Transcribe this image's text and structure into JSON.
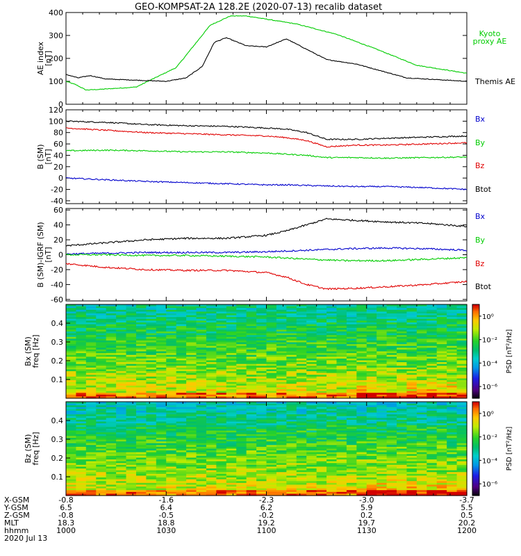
{
  "title": "GEO-KOMPSAT-2A 128.2E (2020-07-13) recalib dataset",
  "colors": {
    "black": "#000000",
    "red": "#e00000",
    "green": "#00cc00",
    "blue": "#0000cc"
  },
  "chart_data": [
    {
      "type": "line",
      "panel": "AE index",
      "ylabel": [
        "AE index",
        "[nT]"
      ],
      "ylim": [
        0,
        400
      ],
      "yticks": [
        "0",
        "100",
        "200",
        "300",
        "400"
      ],
      "x": [
        10.0,
        10.25,
        10.5,
        10.75,
        11.0,
        11.25,
        11.5,
        11.75,
        12.0
      ],
      "series": [
        {
          "name": "Kyoto\nproxy AE",
          "legend": [
            "Kyoto",
            "proxy AE"
          ],
          "color": "#00cc00",
          "values": [
            100,
            85,
            62,
            65,
            75,
            160,
            345,
            385,
            385,
            350,
            305,
            240,
            170,
            135
          ],
          "x": [
            10.0,
            10.05,
            10.1,
            10.17,
            10.35,
            10.55,
            10.72,
            10.82,
            10.9,
            11.15,
            11.35,
            11.55,
            11.75,
            12.0
          ]
        },
        {
          "name": "Themis AE",
          "legend": [
            "Themis AE"
          ],
          "color": "#000000",
          "values": [
            130,
            115,
            125,
            110,
            105,
            100,
            115,
            165,
            270,
            290,
            255,
            250,
            285,
            195,
            175,
            115,
            100
          ],
          "x": [
            10.0,
            10.06,
            10.12,
            10.2,
            10.35,
            10.5,
            10.6,
            10.68,
            10.74,
            10.8,
            10.9,
            11.0,
            11.1,
            11.3,
            11.45,
            11.7,
            12.0
          ]
        }
      ]
    },
    {
      "type": "line",
      "panel": "B (SM)",
      "ylabel": [
        "B (SM)",
        "[nT]"
      ],
      "ylim": [
        -45,
        120
      ],
      "yticks": [
        "-40",
        "-20",
        "0",
        "20",
        "40",
        "60",
        "80",
        "100",
        "120"
      ],
      "series": [
        {
          "name": "Btot",
          "color": "#000000",
          "x": [
            10.0,
            10.2,
            10.4,
            10.6,
            10.8,
            11.0,
            11.1,
            11.2,
            11.3,
            11.45,
            11.6,
            11.8,
            12.0
          ],
          "values": [
            100,
            98,
            94,
            92,
            91,
            88,
            86,
            80,
            68,
            68,
            70,
            72,
            74
          ]
        },
        {
          "name": "Bz",
          "color": "#e00000",
          "x": [
            10.0,
            10.2,
            10.4,
            10.6,
            10.8,
            11.0,
            11.1,
            11.2,
            11.3,
            11.45,
            11.6,
            11.8,
            12.0
          ],
          "values": [
            88,
            84,
            80,
            78,
            76,
            74,
            71,
            66,
            55,
            58,
            58,
            60,
            62
          ]
        },
        {
          "name": "By",
          "color": "#00cc00",
          "x": [
            10.0,
            10.2,
            10.4,
            10.6,
            10.8,
            11.0,
            11.1,
            11.2,
            11.3,
            11.45,
            11.6,
            11.8,
            12.0
          ],
          "values": [
            48,
            49,
            48,
            46,
            46,
            44,
            42,
            40,
            36,
            36,
            35,
            36,
            37
          ]
        },
        {
          "name": "Bx",
          "color": "#0000cc",
          "x": [
            10.0,
            10.2,
            10.4,
            10.6,
            10.8,
            11.0,
            11.1,
            11.2,
            11.3,
            11.45,
            11.6,
            11.8,
            12.0
          ],
          "values": [
            0,
            -3,
            -6,
            -8,
            -10,
            -12,
            -12,
            -13,
            -14,
            -15,
            -15,
            -17,
            -20
          ]
        }
      ],
      "legend": [
        {
          "label": "Bx",
          "color": "#0000cc"
        },
        {
          "label": "By",
          "color": "#00cc00"
        },
        {
          "label": "Bz",
          "color": "#e00000"
        },
        {
          "label": "Btot",
          "color": "#000000"
        }
      ]
    },
    {
      "type": "line",
      "panel": "B (SM)-IGRF (SM)",
      "ylabel": [
        "B (SM)-IGRF (SM)",
        "[nT]"
      ],
      "ylim": [
        -62,
        62
      ],
      "yticks": [
        "-60",
        "-40",
        "-20",
        "0",
        "20",
        "40",
        "60"
      ],
      "series": [
        {
          "name": "Btot",
          "color": "#000000",
          "x": [
            10.0,
            10.2,
            10.4,
            10.6,
            10.8,
            11.0,
            11.1,
            11.2,
            11.3,
            11.45,
            11.6,
            11.8,
            12.0
          ],
          "values": [
            12,
            16,
            20,
            22,
            22,
            26,
            32,
            40,
            48,
            46,
            44,
            42,
            38
          ]
        },
        {
          "name": "Bx",
          "color": "#0000cc",
          "x": [
            10.0,
            10.2,
            10.4,
            10.6,
            10.8,
            11.0,
            11.2,
            11.4,
            11.6,
            11.8,
            12.0
          ],
          "values": [
            1,
            2,
            3,
            3,
            3,
            4,
            6,
            8,
            9,
            8,
            6
          ]
        },
        {
          "name": "By",
          "color": "#00cc00",
          "x": [
            10.0,
            10.2,
            10.4,
            10.6,
            10.8,
            11.0,
            11.2,
            11.4,
            11.6,
            11.8,
            12.0
          ],
          "values": [
            0,
            0,
            -1,
            -1,
            -2,
            -3,
            -6,
            -8,
            -8,
            -6,
            -4
          ]
        },
        {
          "name": "Bz",
          "color": "#e00000",
          "x": [
            10.0,
            10.2,
            10.4,
            10.6,
            10.8,
            11.0,
            11.1,
            11.2,
            11.3,
            11.45,
            11.6,
            11.8,
            12.0
          ],
          "values": [
            -12,
            -17,
            -20,
            -21,
            -21,
            -24,
            -30,
            -40,
            -46,
            -45,
            -43,
            -40,
            -36
          ]
        }
      ],
      "legend": [
        {
          "label": "Bx",
          "color": "#0000cc"
        },
        {
          "label": "By",
          "color": "#00cc00"
        },
        {
          "label": "Bz",
          "color": "#e00000"
        },
        {
          "label": "Btot",
          "color": "#000000"
        }
      ]
    },
    {
      "type": "heatmap",
      "panel": "Bx (SM)",
      "ylabel": [
        "Bx (SM)",
        "freq [Hz]"
      ],
      "ylim": [
        0,
        0.5
      ],
      "yticks": [
        "0.1",
        "0.2",
        "0.3",
        "0.4"
      ],
      "colorbar": {
        "label": "PSD [nT²/Hz]",
        "ticks": [
          "10⁰",
          "10⁻²",
          "10⁻⁴",
          "10⁻⁶"
        ],
        "range_log10": [
          -7,
          1
        ]
      }
    },
    {
      "type": "heatmap",
      "panel": "Bz (SM)",
      "ylabel": [
        "Bz (SM)",
        "freq [Hz]"
      ],
      "ylim": [
        0,
        0.5
      ],
      "yticks": [
        "0.1",
        "0.2",
        "0.3",
        "0.4"
      ],
      "colorbar": {
        "label": "PSD [nT²/Hz]",
        "ticks": [
          "10⁰",
          "10⁻²",
          "10⁻⁴",
          "10⁻⁶"
        ],
        "range_log10": [
          -7,
          1
        ]
      }
    }
  ],
  "footer": {
    "row_labels": [
      "X-GSM",
      "Y-GSM",
      "Z-GSM",
      "MLT",
      "hhmm",
      "2020 Jul 13"
    ],
    "columns": [
      {
        "x_gsm": "-0.8",
        "y_gsm": "6.5",
        "z_gsm": "-0.8",
        "mlt": "18.3",
        "hhmm": "1000"
      },
      {
        "x_gsm": "-1.6",
        "y_gsm": "6.4",
        "z_gsm": "-0.5",
        "mlt": "18.8",
        "hhmm": "1030"
      },
      {
        "x_gsm": "-2.3",
        "y_gsm": "6.2",
        "z_gsm": "-0.2",
        "mlt": "19.2",
        "hhmm": "1100"
      },
      {
        "x_gsm": "-3.0",
        "y_gsm": "5.9",
        "z_gsm": "0.2",
        "mlt": "19.7",
        "hhmm": "1130"
      },
      {
        "x_gsm": "-3.7",
        "y_gsm": "5.5",
        "z_gsm": "0.5",
        "mlt": "20.2",
        "hhmm": "1200"
      }
    ]
  }
}
